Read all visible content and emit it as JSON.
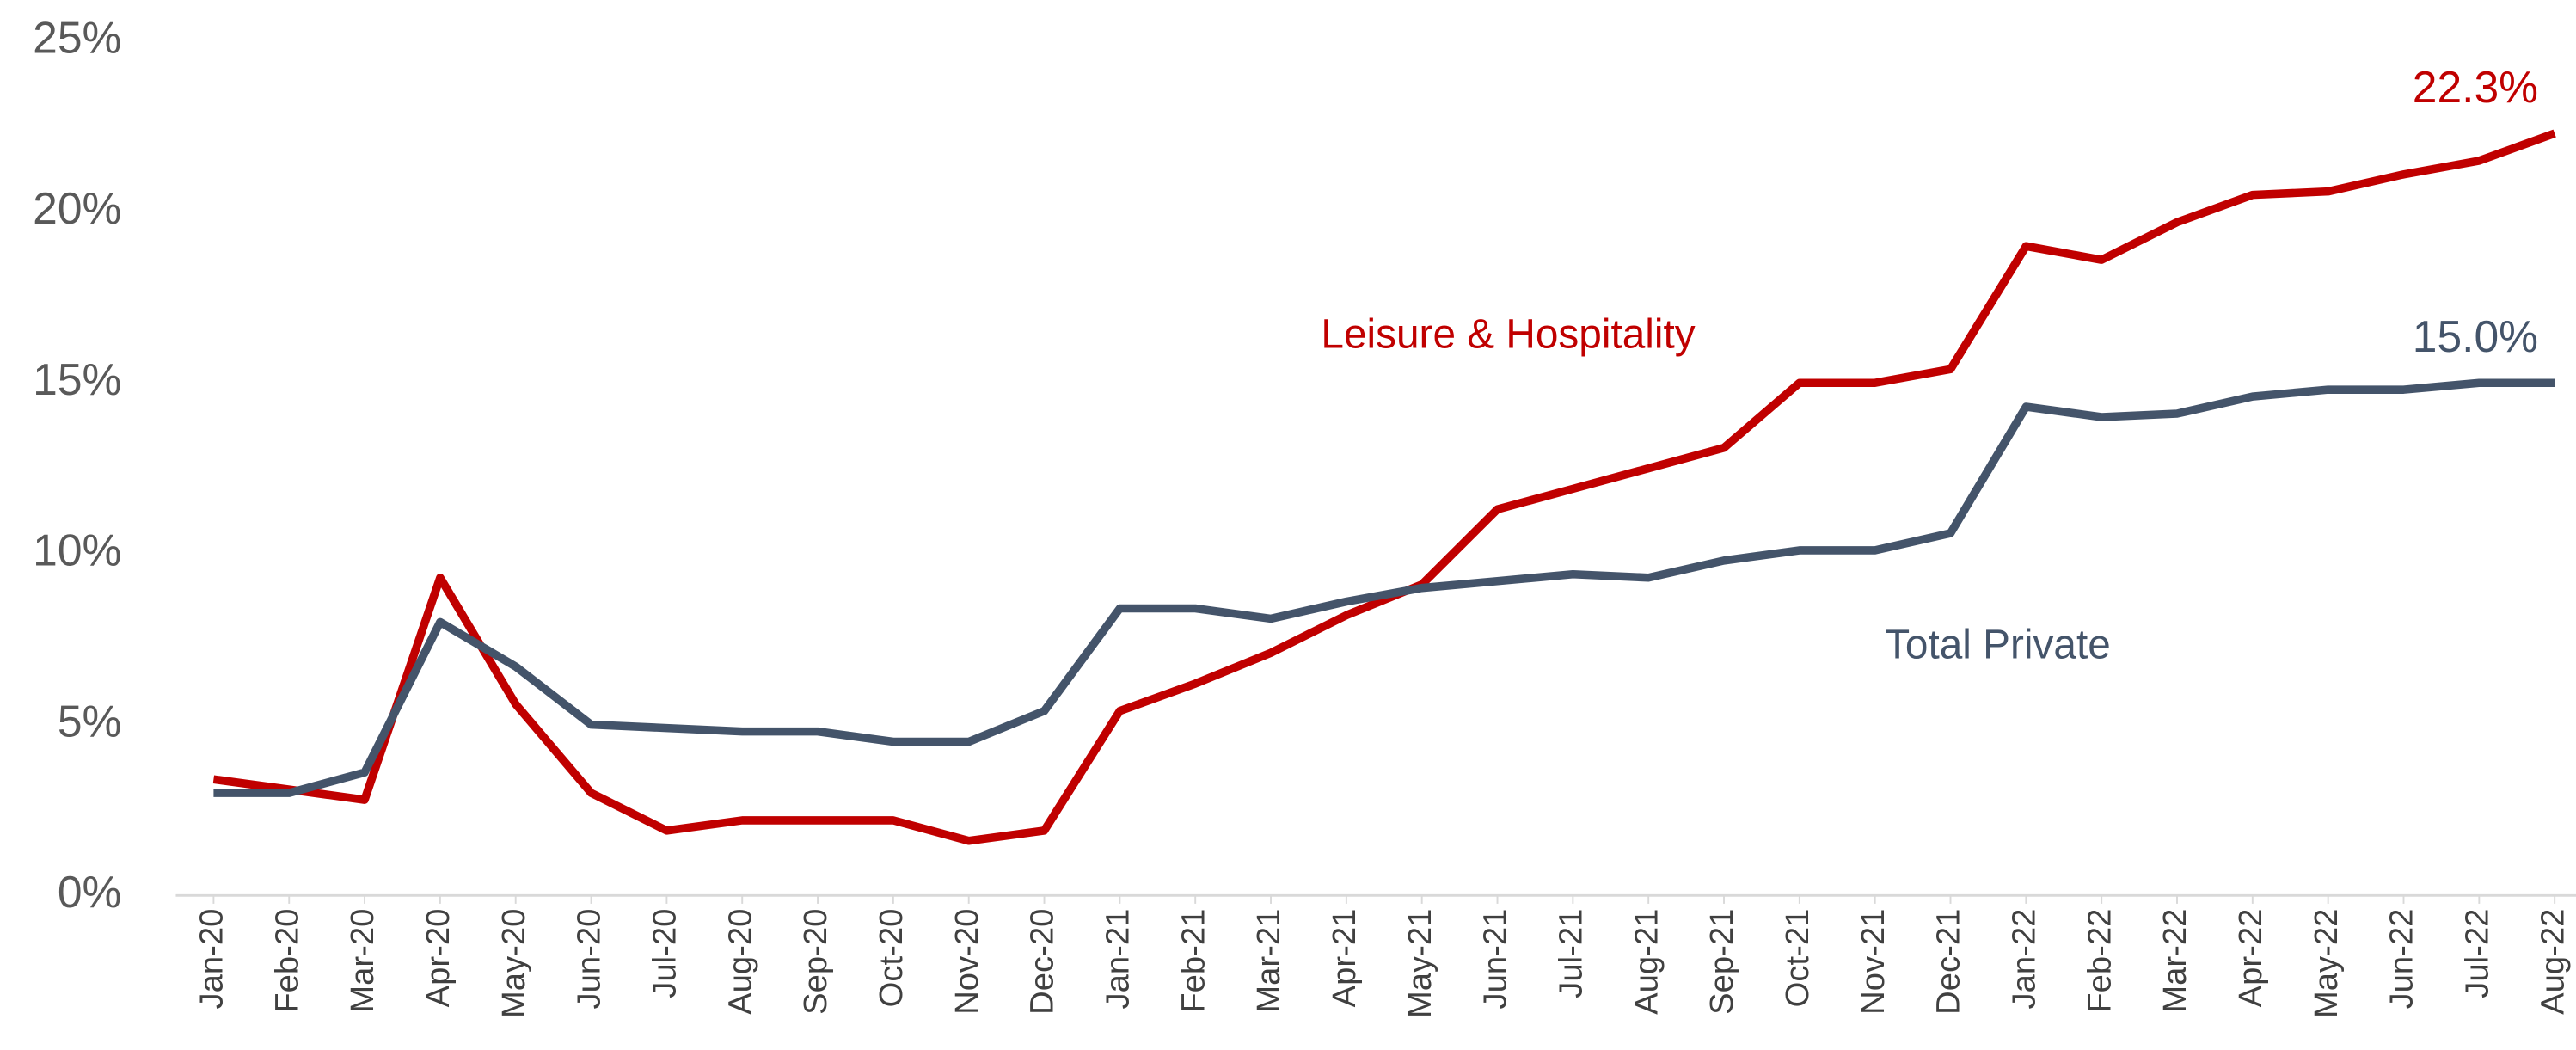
{
  "chart_data": {
    "type": "line",
    "categories": [
      "Jan-20",
      "Feb-20",
      "Mar-20",
      "Apr-20",
      "May-20",
      "Jun-20",
      "Jul-20",
      "Aug-20",
      "Sep-20",
      "Oct-20",
      "Nov-20",
      "Dec-20",
      "Jan-21",
      "Feb-21",
      "Mar-21",
      "Apr-21",
      "May-21",
      "Jun-21",
      "Jul-21",
      "Aug-21",
      "Sep-21",
      "Oct-21",
      "Nov-21",
      "Dec-21",
      "Jan-22",
      "Feb-22",
      "Mar-22",
      "Apr-22",
      "May-22",
      "Jun-22",
      "Jul-22",
      "Aug-22"
    ],
    "series": [
      {
        "name": "Leisure & Hospitality",
        "color": "#c00000",
        "values": [
          3.4,
          3.1,
          2.8,
          9.3,
          5.6,
          3.0,
          1.9,
          2.2,
          2.2,
          2.2,
          1.6,
          1.9,
          5.4,
          6.2,
          7.1,
          8.2,
          9.1,
          11.3,
          11.9,
          12.5,
          13.1,
          15.0,
          15.0,
          15.4,
          19.0,
          18.6,
          19.7,
          20.5,
          20.6,
          21.1,
          21.5,
          22.3
        ],
        "value_labels": [
          null,
          null,
          null,
          null,
          null,
          null,
          null,
          null,
          null,
          null,
          null,
          null,
          null,
          null,
          null,
          null,
          null,
          null,
          null,
          null,
          null,
          null,
          null,
          null,
          null,
          null,
          null,
          null,
          null,
          null,
          null,
          "22.3%"
        ]
      },
      {
        "name": "Total Private",
        "color": "#44546a",
        "values": [
          3.0,
          3.0,
          3.6,
          8.0,
          6.7,
          5.0,
          4.9,
          4.8,
          4.8,
          4.5,
          4.5,
          5.4,
          8.4,
          8.4,
          8.1,
          8.6,
          9.0,
          9.2,
          9.4,
          9.3,
          9.8,
          10.1,
          10.1,
          10.6,
          14.3,
          14.0,
          14.1,
          14.6,
          14.8,
          14.8,
          15.0,
          15.0
        ],
        "value_labels": [
          null,
          null,
          null,
          null,
          null,
          null,
          null,
          null,
          null,
          null,
          null,
          null,
          null,
          null,
          null,
          null,
          null,
          null,
          null,
          null,
          null,
          null,
          null,
          null,
          null,
          null,
          null,
          null,
          null,
          null,
          null,
          "15.0%"
        ]
      }
    ],
    "ylim": [
      0,
      25
    ],
    "yticks": [
      {
        "value": 0,
        "label": "0%"
      },
      {
        "value": 5,
        "label": "5%"
      },
      {
        "value": 10,
        "label": "10%"
      },
      {
        "value": 15,
        "label": "15%"
      },
      {
        "value": 20,
        "label": "20%"
      },
      {
        "value": 25,
        "label": "25%"
      }
    ],
    "grid": false
  }
}
